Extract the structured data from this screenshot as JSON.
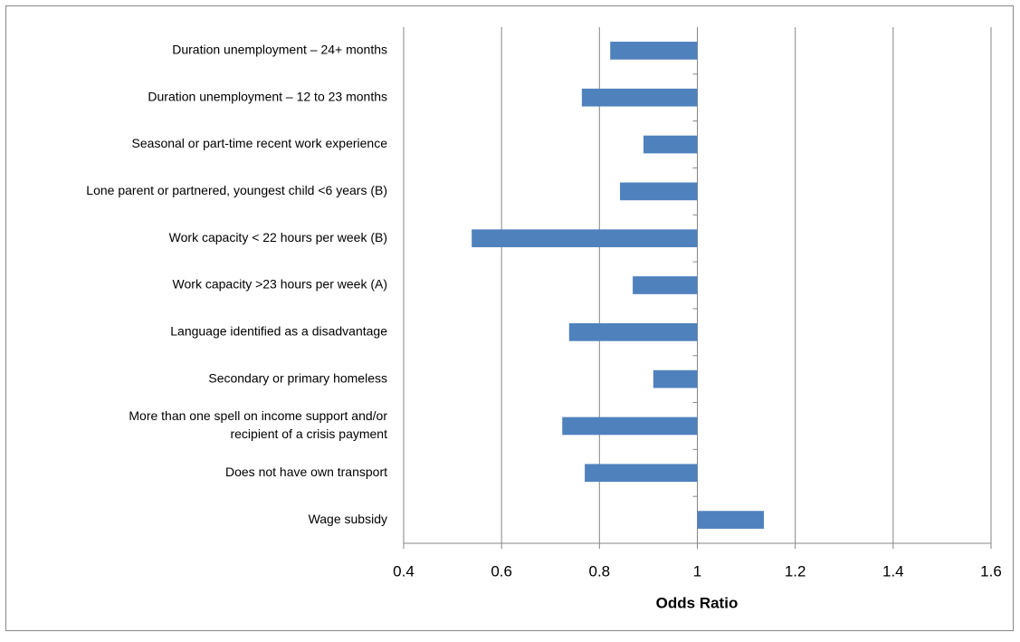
{
  "chart_data": {
    "type": "bar",
    "orientation": "horizontal",
    "x_label": "Odds Ratio",
    "categories": [
      "Duration unemployment – 24+ months",
      "Duration unemployment – 12 to 23 months",
      "Seasonal or part-time recent work experience",
      "Lone parent or partnered, youngest child <6 years (B)",
      "Work capacity < 22 hours per week (B)",
      "Work capacity >23 hours per week (A)",
      "Language identified as a disadvantage",
      "Secondary or primary homeless",
      [
        "More than one spell on income support and/or",
        "recipient of a crisis payment"
      ],
      "Does not have own transport",
      "Wage subsidy"
    ],
    "values": [
      0.822,
      0.764,
      0.89,
      0.842,
      0.539,
      0.868,
      0.738,
      0.91,
      0.724,
      0.77,
      1.136
    ],
    "baseline": 1,
    "color": "#4f81bd",
    "xlim": [
      0.4,
      1.6
    ],
    "xticks": [
      0.4,
      0.6,
      0.8,
      1,
      1.2,
      1.4,
      1.6
    ],
    "grid": true
  }
}
